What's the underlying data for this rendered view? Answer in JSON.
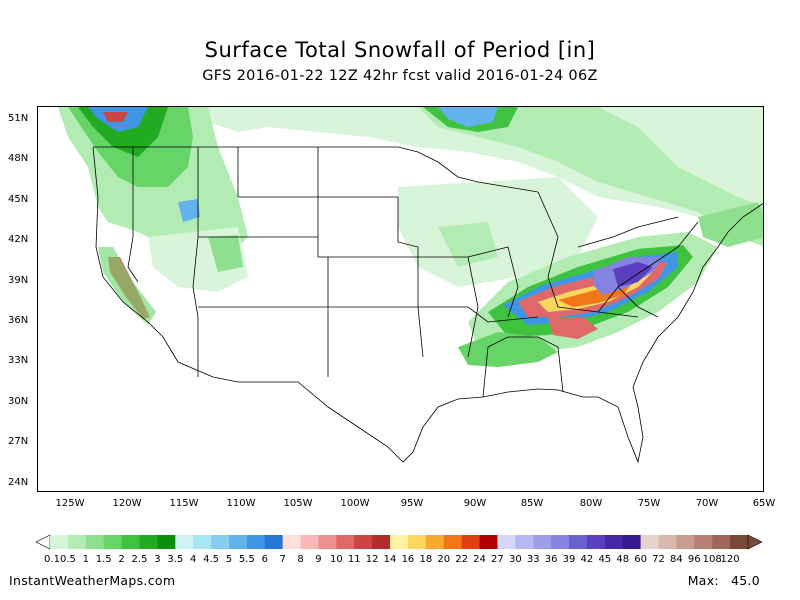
{
  "title": "Surface Total Snowfall of Period [in]",
  "subtitle": "GFS 2016-01-22 12Z 42hr fcst valid 2016-01-24 06Z",
  "lat_labels": [
    "51N",
    "48N",
    "45N",
    "42N",
    "39N",
    "36N",
    "33N",
    "30N",
    "27N",
    "24N"
  ],
  "lon_labels": [
    "125W",
    "120W",
    "115W",
    "110W",
    "105W",
    "100W",
    "95W",
    "90W",
    "85W",
    "80W",
    "75W",
    "70W",
    "65W"
  ],
  "colorbar": {
    "labels": [
      "0.1",
      "0.5",
      "1",
      "1.5",
      "2",
      "2.5",
      "3",
      "3.5",
      "4",
      "4.5",
      "5",
      "5.5",
      "6",
      "7",
      "8",
      "9",
      "10",
      "11",
      "12",
      "14",
      "16",
      "18",
      "20",
      "22",
      "24",
      "27",
      "30",
      "33",
      "36",
      "39",
      "42",
      "45",
      "48",
      "60",
      "72",
      "84",
      "96",
      "108",
      "120"
    ],
    "colors": [
      "#d9f5d9",
      "#b3ecb3",
      "#8ee08e",
      "#66d466",
      "#3fc23f",
      "#22aa22",
      "#0e8e0e",
      "#cdf3f3",
      "#a8e6f2",
      "#86cdf0",
      "#63b2ec",
      "#4096e4",
      "#2676d9",
      "#ffdede",
      "#f8b8b8",
      "#ee9090",
      "#e06868",
      "#cc4444",
      "#b52a2a",
      "#fff2a0",
      "#fbd760",
      "#f8aa30",
      "#f07818",
      "#e04010",
      "#b00000",
      "#d6d6f8",
      "#b8b8f0",
      "#9e9ee8",
      "#8484e0",
      "#6a60d0",
      "#5a40c0",
      "#4828a8",
      "#361890",
      "#e6d2cc",
      "#d8b8ae",
      "#c89c90",
      "#b48074",
      "#a06658",
      "#7a4838"
    ]
  },
  "footer": {
    "site": "InstantWeatherMaps.com",
    "max_label": "Max:",
    "max_value": "45.0"
  }
}
